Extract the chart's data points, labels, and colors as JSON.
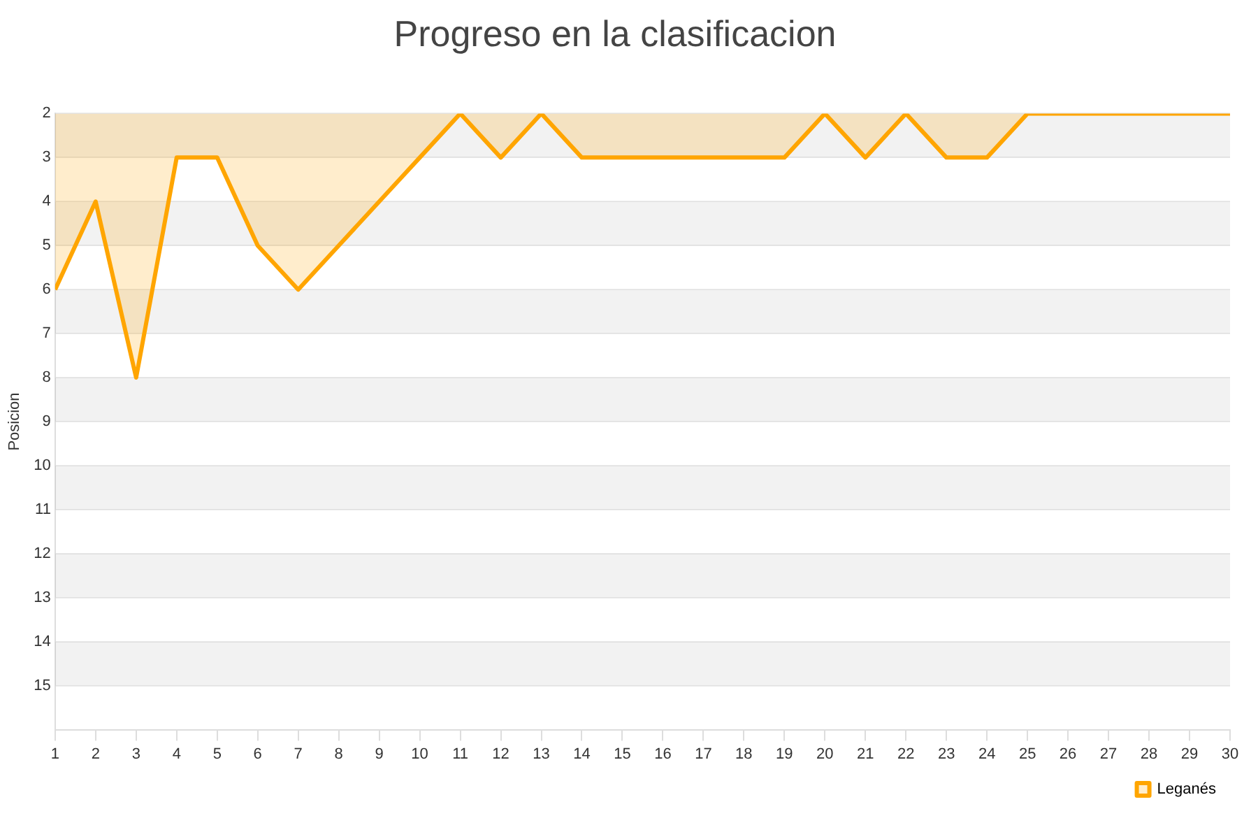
{
  "chart_data": {
    "type": "area",
    "title": "Progreso en la clasificacion",
    "ylabel": "Posicion",
    "x": [
      1,
      2,
      3,
      4,
      5,
      6,
      7,
      8,
      9,
      10,
      11,
      12,
      13,
      14,
      15,
      16,
      17,
      18,
      19,
      20,
      21,
      22,
      23,
      24,
      25,
      26,
      27,
      28,
      29,
      30
    ],
    "series": [
      {
        "name": "Leganés",
        "color": "#ffa500",
        "values": [
          6,
          4,
          8,
          3,
          3,
          5,
          6,
          5,
          4,
          3,
          2,
          3,
          2,
          3,
          3,
          3,
          3,
          3,
          3,
          2,
          3,
          2,
          3,
          3,
          2,
          2,
          2,
          2,
          2,
          2
        ]
      }
    ],
    "xlim": [
      1,
      30
    ],
    "xticks": [
      1,
      2,
      3,
      4,
      5,
      6,
      7,
      8,
      9,
      10,
      11,
      12,
      13,
      14,
      15,
      16,
      17,
      18,
      19,
      20,
      21,
      22,
      23,
      24,
      25,
      26,
      27,
      28,
      29,
      30
    ],
    "ylim": [
      16,
      2
    ],
    "yticks": [
      2,
      3,
      4,
      5,
      6,
      7,
      8,
      9,
      10,
      11,
      12,
      13,
      14,
      15
    ],
    "grid": true,
    "legend": "bottom right",
    "marker": "none"
  }
}
